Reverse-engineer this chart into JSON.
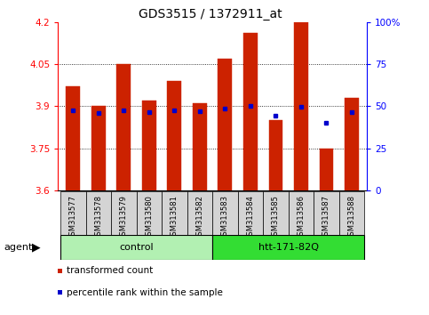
{
  "title": "GDS3515 / 1372911_at",
  "samples": [
    "GSM313577",
    "GSM313578",
    "GSM313579",
    "GSM313580",
    "GSM313581",
    "GSM313582",
    "GSM313583",
    "GSM313584",
    "GSM313585",
    "GSM313586",
    "GSM313587",
    "GSM313588"
  ],
  "red_values": [
    3.97,
    3.9,
    4.05,
    3.92,
    3.99,
    3.91,
    4.07,
    4.16,
    3.85,
    4.2,
    3.75,
    3.93
  ],
  "blue_values": [
    3.885,
    3.875,
    3.885,
    3.88,
    3.887,
    3.882,
    3.892,
    3.9,
    3.866,
    3.898,
    3.84,
    3.878
  ],
  "ylim": [
    3.6,
    4.2
  ],
  "y2lim": [
    0,
    100
  ],
  "yticks": [
    3.6,
    3.75,
    3.9,
    4.05,
    4.2
  ],
  "ytick_labels": [
    "3.6",
    "3.75",
    "3.9",
    "4.05",
    "4.2"
  ],
  "y2ticks": [
    0,
    25,
    50,
    75,
    100
  ],
  "y2tick_labels": [
    "0",
    "25",
    "50",
    "75",
    "100%"
  ],
  "gridlines": [
    3.75,
    3.9,
    4.05
  ],
  "groups": [
    {
      "label": "control",
      "indices": [
        0,
        1,
        2,
        3,
        4,
        5
      ],
      "color": "#b2f0b2"
    },
    {
      "label": "htt-171-82Q",
      "indices": [
        6,
        7,
        8,
        9,
        10,
        11
      ],
      "color": "#33dd33"
    }
  ],
  "bar_color": "#cc2200",
  "dot_color": "#0000cc",
  "bar_width": 0.55,
  "legend": [
    {
      "label": "transformed count",
      "color": "#cc2200"
    },
    {
      "label": "percentile rank within the sample",
      "color": "#0000cc"
    }
  ],
  "fig_width": 4.83,
  "fig_height": 3.54,
  "dpi": 100
}
